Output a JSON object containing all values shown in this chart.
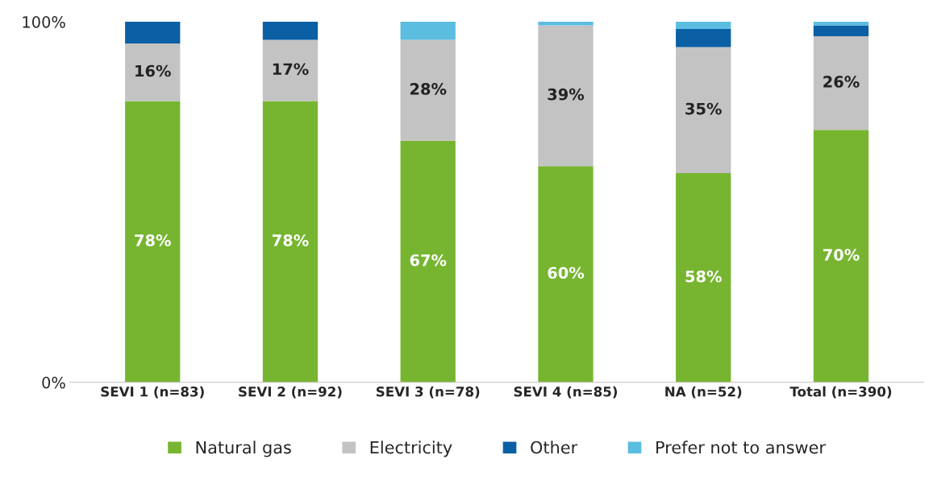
{
  "chart_data": {
    "type": "bar",
    "stacked": true,
    "categories": [
      "SEVI 1 (n=83)",
      "SEVI 2 (n=92)",
      "SEVI 3 (n=78)",
      "SEVI 4 (n=85)",
      "NA (n=52)",
      "Total (n=390)"
    ],
    "series": [
      {
        "name": "Natural gas",
        "color": "#77b531",
        "values": [
          78,
          78,
          67,
          60,
          58,
          70
        ],
        "value_labels": [
          "78%",
          "78%",
          "67%",
          "60%",
          "58%",
          "70%"
        ]
      },
      {
        "name": "Electricity",
        "color": "#c3c3c3",
        "values": [
          16,
          17,
          28,
          39,
          35,
          26
        ],
        "value_labels": [
          "16%",
          "17%",
          "28%",
          "39%",
          "35%",
          "26%"
        ]
      },
      {
        "name": "Other",
        "color": "#0b5fa5",
        "values": [
          6,
          5,
          0,
          0,
          5,
          3
        ]
      },
      {
        "name": "Prefer not to answer",
        "color": "#5bbde0",
        "values": [
          0,
          0,
          5,
          1,
          2,
          1
        ]
      }
    ],
    "ylim": [
      0,
      100
    ],
    "yticks": [
      {
        "value": 0,
        "label": "0%"
      },
      {
        "value": 100,
        "label": "100%"
      }
    ],
    "grid": false,
    "legend": "bottom"
  }
}
